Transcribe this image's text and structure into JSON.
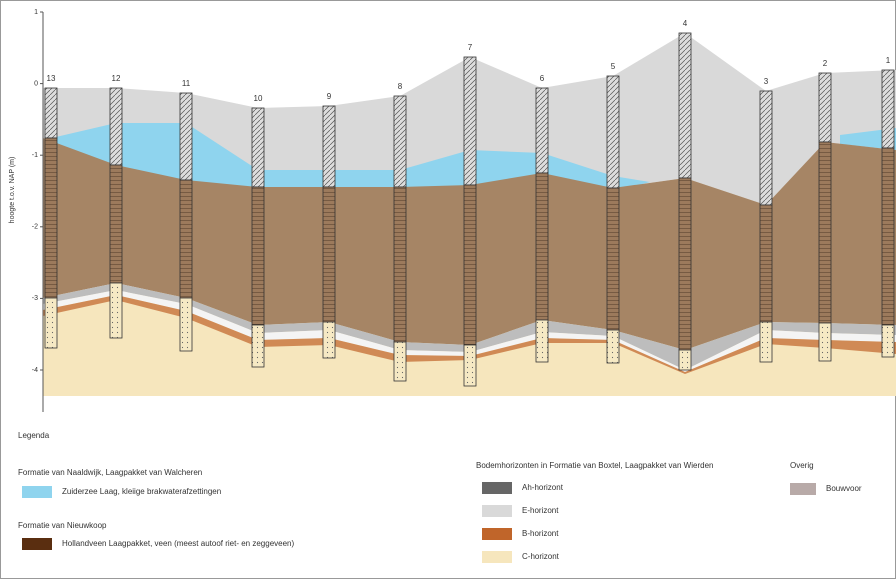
{
  "axis": {
    "label": "hoogte t.o.v. NAP (m)",
    "ticks": [
      "1",
      "0",
      "-1",
      "-2",
      "-3",
      "-4"
    ]
  },
  "boreholes": [
    "13",
    "12",
    "11",
    "10",
    "9",
    "8",
    "7",
    "6",
    "5",
    "4",
    "3",
    "2",
    "1"
  ],
  "legend": {
    "title": "Legenda",
    "groups": [
      {
        "title": "Formatie van Naaldwijk, Laagpakket van Walcheren",
        "items": [
          "Zuiderzee Laag, kleiige brakwaterafzettingen"
        ]
      },
      {
        "title": "Formatie van Nieuwkoop",
        "items": [
          "Hollandveen Laagpakket, veen (meest autoof riet- en zeggeveen)"
        ]
      },
      {
        "title": "Bodemhorizonten in Formatie van Boxtel, Laagpakket van Wierden",
        "items": [
          "Ah-horizont",
          "E-horizont",
          "B-horizont",
          "C-horizont"
        ]
      },
      {
        "title": "Overig",
        "items": [
          "Bouwvoor"
        ]
      }
    ]
  }
}
